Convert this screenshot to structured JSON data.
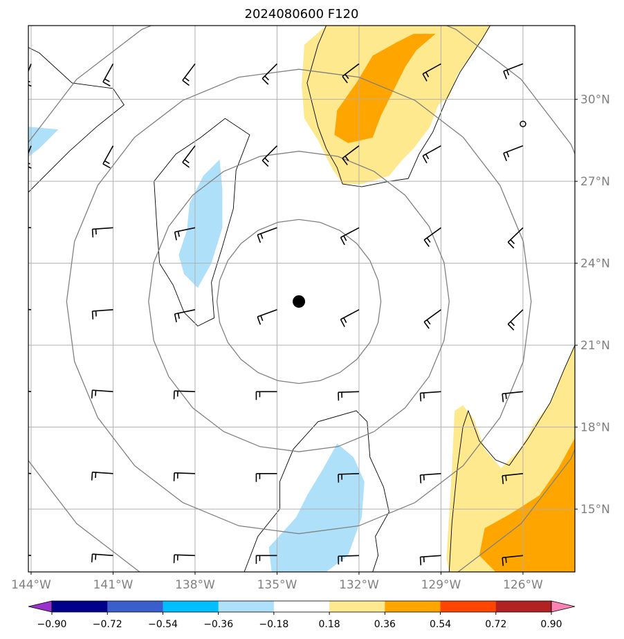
{
  "chart_data": {
    "type": "contour-map",
    "title": "2024080600 F120",
    "x_ticks": [
      "144°W",
      "141°W",
      "138°W",
      "135°W",
      "132°W",
      "129°W",
      "126°W"
    ],
    "x_tick_values": [
      -144,
      -141,
      -138,
      -135,
      -132,
      -129,
      -126
    ],
    "y_ticks": [
      "15°N",
      "18°N",
      "21°N",
      "24°N",
      "27°N",
      "30°N"
    ],
    "y_tick_values": [
      15,
      18,
      21,
      24,
      27,
      30
    ],
    "xlim": [
      -144.1,
      -124.1
    ],
    "ylim": [
      12.7,
      32.7
    ],
    "grid": true,
    "center_marker": {
      "lon": -134.2,
      "lat": 22.6
    },
    "small_marker": {
      "lon": -126.0,
      "lat": 29.1
    },
    "range_rings_deg": [
      3,
      5.5,
      8.5,
      11.5
    ],
    "colorbar": {
      "levels": [
        -0.9,
        -0.72,
        -0.54,
        -0.36,
        -0.18,
        0.18,
        0.36,
        0.54,
        0.72,
        0.9
      ],
      "labels": [
        "−0.90",
        "−0.72",
        "−0.54",
        "−0.36",
        "−0.18",
        "0.18",
        "0.36",
        "0.54",
        "0.72",
        "0.90"
      ],
      "colors": [
        "#9932cc",
        "#00008b",
        "#3a5fcd",
        "#00bfff",
        "#aee0fa",
        "#ffffff",
        "#ffe98f",
        "#ffa500",
        "#ff4500",
        "#b22222",
        "#ff82b4"
      ]
    },
    "fields": [
      {
        "level": -0.18,
        "points": [
          [
            -144.1,
            31.9
          ],
          [
            -143.7,
            31.7
          ],
          [
            -142.5,
            30.6
          ],
          [
            -141.3,
            30.4
          ],
          [
            -140.6,
            29.8
          ],
          [
            -141.6,
            29.0
          ],
          [
            -142.6,
            28.1
          ],
          [
            -143.4,
            27.3
          ],
          [
            -144.1,
            26.6
          ]
        ]
      },
      {
        "level": -0.36,
        "points": [
          [
            -144.1,
            29.0
          ],
          [
            -143.0,
            28.9
          ],
          [
            -143.7,
            28.2
          ],
          [
            -144.1,
            27.9
          ]
        ]
      },
      {
        "level": -0.18,
        "points": [
          [
            -139.5,
            27.0
          ],
          [
            -138.7,
            28.0
          ],
          [
            -137.8,
            28.6
          ],
          [
            -136.5,
            29.1
          ],
          [
            -135.8,
            28.2
          ],
          [
            -136.4,
            27.2
          ],
          [
            -136.6,
            26.0
          ],
          [
            -137.0,
            24.6
          ],
          [
            -137.5,
            23.3
          ],
          [
            -137.4,
            21.9
          ],
          [
            -138.0,
            21.6
          ],
          [
            -138.4,
            22.2
          ],
          [
            -138.8,
            23.2
          ],
          [
            -139.3,
            24.0
          ],
          [
            -139.4,
            25.4
          ]
        ]
      },
      {
        "level": -0.36,
        "points": [
          [
            -138.2,
            26.2
          ],
          [
            -137.7,
            27.2
          ],
          [
            -137.1,
            27.8
          ],
          [
            -137.0,
            26.7
          ],
          [
            -137.0,
            25.3
          ],
          [
            -137.4,
            24.0
          ],
          [
            -137.9,
            23.1
          ],
          [
            -138.4,
            23.6
          ],
          [
            -138.6,
            24.3
          ],
          [
            -138.3,
            25.2
          ]
        ]
      },
      {
        "level": -0.18,
        "points": [
          [
            -134.3,
            17.1
          ],
          [
            -133.3,
            18.3
          ],
          [
            -132.4,
            18.4
          ],
          [
            -131.6,
            18.1
          ],
          [
            -131.6,
            16.8
          ],
          [
            -131.0,
            16.0
          ],
          [
            -131.0,
            15.0
          ],
          [
            -131.5,
            14.7
          ],
          [
            -131.3,
            13.6
          ],
          [
            -131.5,
            12.7
          ],
          [
            -136.5,
            12.7
          ],
          [
            -136.5,
            13.2
          ],
          [
            -135.5,
            14.5
          ],
          [
            -135.1,
            15.5
          ]
        ]
      },
      {
        "level": -0.36,
        "points": [
          [
            -133.3,
            16.5
          ],
          [
            -132.8,
            17.4
          ],
          [
            -132.2,
            16.9
          ],
          [
            -131.8,
            16.0
          ],
          [
            -131.9,
            14.7
          ],
          [
            -132.4,
            13.3
          ],
          [
            -133.2,
            12.7
          ],
          [
            -135.2,
            12.7
          ],
          [
            -135.3,
            13.6
          ],
          [
            -134.3,
            14.7
          ],
          [
            -133.9,
            15.5
          ]
        ]
      },
      {
        "level": 0.18,
        "points": [
          [
            -133.2,
            32.7
          ],
          [
            -127.2,
            32.7
          ],
          [
            -127.5,
            32.2
          ],
          [
            -128.4,
            30.9
          ],
          [
            -128.7,
            30.1
          ],
          [
            -129.1,
            29.8
          ],
          [
            -129.4,
            29.0
          ],
          [
            -130.0,
            28.2
          ],
          [
            -130.4,
            27.8
          ],
          [
            -130.9,
            27.2
          ],
          [
            -131.9,
            26.9
          ],
          [
            -132.6,
            26.9
          ],
          [
            -133.0,
            27.5
          ],
          [
            -133.5,
            28.5
          ],
          [
            -134.0,
            29.3
          ],
          [
            -134.1,
            30.5
          ],
          [
            -134.0,
            32.0
          ]
        ]
      },
      {
        "level": 0.36,
        "points": [
          [
            -129.2,
            32.4
          ],
          [
            -129.9,
            31.8
          ],
          [
            -130.3,
            31.2
          ],
          [
            -130.7,
            30.4
          ],
          [
            -131.2,
            29.4
          ],
          [
            -131.5,
            28.6
          ],
          [
            -132.4,
            28.4
          ],
          [
            -132.9,
            28.7
          ],
          [
            -132.8,
            29.6
          ],
          [
            -132.1,
            30.6
          ],
          [
            -131.5,
            31.6
          ],
          [
            -130.6,
            32.1
          ],
          [
            -130.0,
            32.4
          ]
        ]
      },
      {
        "level": 0.18,
        "points": [
          [
            -128.5,
            18.6
          ],
          [
            -128.2,
            18.8
          ],
          [
            -127.8,
            18.3
          ],
          [
            -127.4,
            17.2
          ],
          [
            -126.8,
            16.5
          ],
          [
            -126.1,
            17.2
          ],
          [
            -125.6,
            18.1
          ],
          [
            -125.0,
            18.9
          ],
          [
            -124.5,
            20.1
          ],
          [
            -124.1,
            21.0
          ],
          [
            -124.1,
            12.7
          ],
          [
            -128.7,
            12.7
          ],
          [
            -128.8,
            13.2
          ],
          [
            -128.7,
            14.8
          ],
          [
            -128.6,
            16.5
          ]
        ]
      },
      {
        "level": 0.36,
        "points": [
          [
            -126.5,
            14.8
          ],
          [
            -125.4,
            15.5
          ],
          [
            -124.7,
            16.5
          ],
          [
            -124.1,
            17.6
          ],
          [
            -124.1,
            12.7
          ],
          [
            -127.0,
            12.7
          ],
          [
            -127.6,
            13.3
          ],
          [
            -127.4,
            14.3
          ]
        ]
      }
    ],
    "contour_lines": [
      [
        [
          -144.1,
          26.6
        ],
        [
          -143.4,
          27.3
        ],
        [
          -142.6,
          28.1
        ],
        [
          -141.6,
          29.0
        ],
        [
          -140.6,
          29.8
        ],
        [
          -141.0,
          30.4
        ],
        [
          -142.5,
          30.6
        ],
        [
          -143.7,
          31.7
        ],
        [
          -144.1,
          31.9
        ]
      ],
      [
        [
          -139.5,
          27.0
        ],
        [
          -138.7,
          28.0
        ],
        [
          -137.8,
          28.6
        ],
        [
          -136.9,
          29.3
        ],
        [
          -136.0,
          28.7
        ],
        [
          -136.5,
          27.4
        ],
        [
          -136.6,
          26.0
        ],
        [
          -137.0,
          24.6
        ],
        [
          -137.4,
          23.3
        ],
        [
          -137.3,
          22.0
        ],
        [
          -137.9,
          21.7
        ],
        [
          -138.4,
          22.2
        ],
        [
          -138.8,
          23.2
        ],
        [
          -139.3,
          24.0
        ],
        [
          -139.4,
          25.4
        ],
        [
          -139.5,
          27.0
        ]
      ],
      [
        [
          -133.2,
          32.7
        ],
        [
          -133.5,
          32.0
        ],
        [
          -133.9,
          30.6
        ],
        [
          -133.5,
          29.0
        ],
        [
          -133.2,
          28.2
        ],
        [
          -132.8,
          27.5
        ],
        [
          -132.6,
          26.9
        ],
        [
          -131.9,
          26.8
        ],
        [
          -130.9,
          27.0
        ],
        [
          -130.2,
          27.1
        ],
        [
          -129.8,
          28.0
        ],
        [
          -129.3,
          28.8
        ],
        [
          -128.8,
          30.0
        ],
        [
          -128.3,
          31.0
        ],
        [
          -127.5,
          32.2
        ],
        [
          -127.2,
          32.7
        ]
      ],
      [
        [
          -136.2,
          12.7
        ],
        [
          -135.7,
          14.0
        ],
        [
          -134.9,
          15.0
        ],
        [
          -134.9,
          16.0
        ],
        [
          -134.4,
          17.2
        ],
        [
          -133.5,
          18.2
        ],
        [
          -132.1,
          18.6
        ],
        [
          -131.7,
          18.2
        ],
        [
          -131.6,
          16.9
        ],
        [
          -131.1,
          15.8
        ],
        [
          -130.9,
          14.9
        ],
        [
          -131.4,
          14.0
        ],
        [
          -131.3,
          13.3
        ],
        [
          -131.5,
          12.7
        ]
      ],
      [
        [
          -128.7,
          12.7
        ],
        [
          -128.6,
          14.5
        ],
        [
          -128.4,
          16.5
        ],
        [
          -128.2,
          18.0
        ],
        [
          -128.0,
          18.6
        ],
        [
          -127.6,
          17.5
        ],
        [
          -127.0,
          16.8
        ],
        [
          -126.5,
          16.6
        ],
        [
          -125.8,
          17.6
        ],
        [
          -125.0,
          18.9
        ],
        [
          -124.5,
          20.1
        ],
        [
          -124.1,
          21.0
        ]
      ]
    ]
  }
}
